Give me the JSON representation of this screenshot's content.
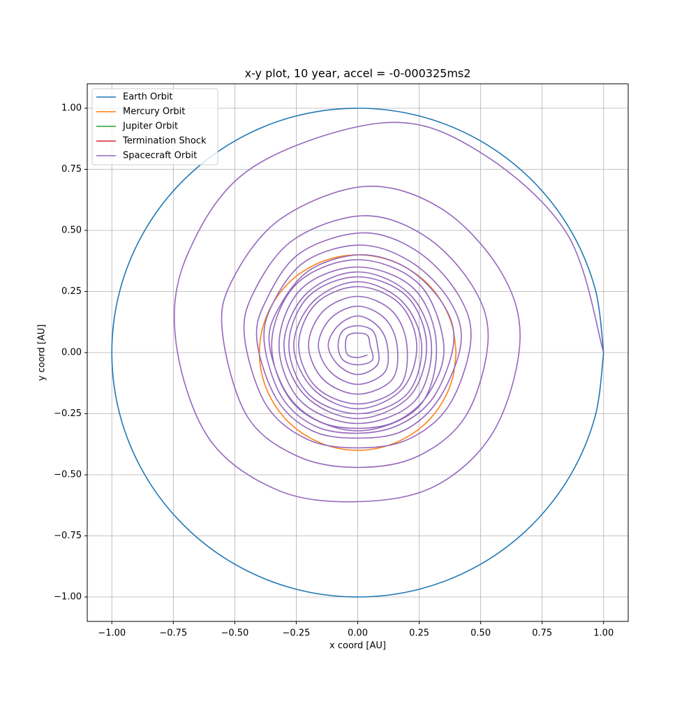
{
  "chart_data": {
    "type": "line",
    "title": "x-y plot, 10 year, accel = -0-000325ms2",
    "x_label": "x coord [AU]",
    "y_label": "y coord [AU]",
    "xlim": [
      -1.1,
      1.1
    ],
    "ylim": [
      -1.1,
      1.1
    ],
    "grid": true,
    "legend": "upper left",
    "xticks": [
      {
        "value": -1,
        "label": "−1.00"
      },
      {
        "value": -0.75,
        "label": "−0.75"
      },
      {
        "value": -0.5,
        "label": "−0.50"
      },
      {
        "value": -0.25,
        "label": "−0.25"
      },
      {
        "value": 0,
        "label": "0.00"
      },
      {
        "value": 0.25,
        "label": "0.25"
      },
      {
        "value": 0.5,
        "label": "0.50"
      },
      {
        "value": 0.75,
        "label": "0.75"
      },
      {
        "value": 1,
        "label": "1.00"
      }
    ],
    "yticks": [
      {
        "value": -1,
        "label": "−1.00"
      },
      {
        "value": -0.75,
        "label": "−0.75"
      },
      {
        "value": -0.5,
        "label": "−0.50"
      },
      {
        "value": -0.25,
        "label": "−0.25"
      },
      {
        "value": 0,
        "label": "0.00"
      },
      {
        "value": 0.25,
        "label": "0.25"
      },
      {
        "value": 0.5,
        "label": "0.50"
      },
      {
        "value": 0.75,
        "label": "0.75"
      },
      {
        "value": 1,
        "label": "1.00"
      }
    ],
    "series": [
      {
        "name": "Earth Orbit",
        "color": "#1f77b4",
        "x": [
          1,
          0.966,
          0.866,
          0.707,
          0.5,
          0.259,
          0,
          -0.259,
          -0.5,
          -0.707,
          -0.866,
          -0.966,
          -1,
          -0.966,
          -0.866,
          -0.707,
          -0.5,
          -0.259,
          0,
          0.259,
          0.5,
          0.707,
          0.866,
          0.966,
          1
        ],
        "y": [
          0,
          0.259,
          0.5,
          0.707,
          0.866,
          0.966,
          1,
          0.966,
          0.866,
          0.707,
          0.5,
          0.259,
          0,
          -0.259,
          -0.5,
          -0.707,
          -0.866,
          -0.966,
          -1,
          -0.966,
          -0.866,
          -0.707,
          -0.5,
          -0.259,
          0
        ]
      },
      {
        "name": "Mercury Orbit",
        "color": "#ff7f0e",
        "x": [
          0.4,
          0.386,
          0.346,
          0.283,
          0.2,
          0.104,
          0,
          -0.104,
          -0.2,
          -0.283,
          -0.346,
          -0.386,
          -0.4,
          -0.386,
          -0.346,
          -0.283,
          -0.2,
          -0.104,
          0,
          0.104,
          0.2,
          0.283,
          0.346,
          0.386,
          0.4
        ],
        "y": [
          0,
          0.104,
          0.2,
          0.283,
          0.346,
          0.386,
          0.4,
          0.386,
          0.346,
          0.283,
          0.2,
          0.104,
          0,
          -0.104,
          -0.2,
          -0.283,
          -0.346,
          -0.386,
          -0.4,
          -0.386,
          -0.346,
          -0.283,
          -0.2,
          -0.104,
          0
        ]
      },
      {
        "name": "Jupiter Orbit",
        "color": "#2ca02c",
        "x": [],
        "y": []
      },
      {
        "name": "Termination Shock",
        "color": "#d62728",
        "x": [],
        "y": []
      },
      {
        "name": "Spacecraft Orbit",
        "color": "#9467bd",
        "x": [
          1.0,
          0.849,
          0.48,
          0.1,
          -0.435,
          -0.693,
          -0.74,
          -0.606,
          -0.325,
          0,
          0.315,
          0.554,
          0.66,
          0.58,
          0.34,
          0.03,
          -0.315,
          -0.511,
          -0.55,
          -0.45,
          -0.245,
          0,
          0.245,
          0.442,
          0.53,
          0.468,
          0.275,
          0.02,
          -0.265,
          -0.424,
          -0.46,
          -0.372,
          -0.205,
          0,
          0.205,
          0.372,
          0.46,
          0.407,
          0.24,
          0.02,
          -0.235,
          -0.372,
          -0.41,
          -0.33,
          -0.185,
          0,
          0.185,
          0.33,
          0.42,
          0.372,
          0.215,
          0.01,
          -0.215,
          -0.346,
          -0.38,
          -0.31,
          -0.175,
          0,
          0.17,
          0.31,
          0.39,
          0.346,
          0.2,
          0.01,
          -0.195,
          -0.32,
          -0.36,
          -0.29,
          -0.16,
          0,
          0.16,
          0.29,
          0.35,
          0.25,
          0,
          -0.25,
          -0.35,
          -0.25,
          0,
          0.25,
          0.32,
          0.23,
          0,
          -0.23,
          -0.32,
          -0.23,
          0,
          0.23,
          0.3,
          0.21,
          0,
          -0.21,
          -0.3,
          -0.21,
          0,
          0.21,
          0.28,
          0.2,
          0,
          -0.2,
          -0.28,
          -0.2,
          0,
          0.2,
          0.26,
          0.18,
          0,
          -0.18,
          -0.26,
          -0.18,
          0,
          0.18,
          0.24,
          0.17,
          0,
          -0.17,
          -0.24,
          -0.17,
          0,
          0.17,
          0.2,
          0.14,
          0,
          -0.14,
          -0.2,
          -0.14,
          0,
          0.14,
          0.16,
          0.11,
          0,
          -0.11,
          -0.16,
          -0.11,
          0,
          0.11,
          0.12,
          0.08,
          0,
          -0.08,
          -0.12,
          -0.08,
          0,
          0.08,
          0.08,
          0.06,
          0,
          -0.06,
          -0.08,
          -0.06,
          0,
          0.06,
          0.05,
          0.04,
          0,
          -0.04,
          -0.05,
          -0.04,
          0,
          0.04
        ],
        "y": [
          0,
          0.49,
          0.831,
          0.94,
          0.753,
          0.4,
          0.05,
          -0.35,
          -0.563,
          -0.61,
          -0.546,
          -0.32,
          0.05,
          0.335,
          0.589,
          0.68,
          0.546,
          0.295,
          0.08,
          -0.26,
          -0.424,
          -0.47,
          -0.424,
          -0.255,
          0.05,
          0.27,
          0.476,
          0.56,
          0.459,
          0.245,
          0.06,
          -0.215,
          -0.355,
          -0.39,
          -0.355,
          -0.215,
          0.05,
          0.24,
          0.416,
          0.49,
          0.407,
          0.215,
          0.05,
          -0.19,
          -0.32,
          -0.35,
          -0.32,
          -0.19,
          0.04,
          0.215,
          0.372,
          0.44,
          0.372,
          0.2,
          0.04,
          -0.18,
          -0.3,
          -0.33,
          -0.295,
          -0.18,
          0.04,
          0.2,
          0.346,
          0.4,
          0.338,
          0.185,
          0.04,
          -0.165,
          -0.28,
          -0.31,
          -0.28,
          -0.165,
          0.03,
          0.28,
          0.38,
          0.28,
          0.03,
          -0.22,
          -0.32,
          -0.22,
          0.03,
          0.26,
          0.35,
          0.26,
          0.03,
          -0.2,
          -0.29,
          -0.2,
          0.03,
          0.24,
          0.33,
          0.24,
          0.03,
          -0.18,
          -0.27,
          -0.18,
          0.03,
          0.23,
          0.31,
          0.23,
          0.03,
          -0.17,
          -0.25,
          -0.17,
          0.03,
          0.21,
          0.29,
          0.21,
          0.03,
          -0.15,
          -0.23,
          -0.15,
          0.03,
          0.2,
          0.27,
          0.2,
          0.03,
          -0.14,
          -0.21,
          -0.14,
          0.03,
          0.17,
          0.23,
          0.17,
          0.03,
          -0.11,
          -0.17,
          -0.11,
          0.03,
          0.14,
          0.19,
          0.14,
          0.03,
          -0.08,
          -0.13,
          -0.08,
          0.03,
          0.11,
          0.15,
          0.11,
          0.03,
          -0.05,
          -0.09,
          -0.05,
          0.03,
          0.09,
          0.11,
          0.09,
          0.03,
          -0.03,
          -0.05,
          -0.03,
          0.03,
          0.07,
          0.08,
          0.07,
          0.03,
          -0.01,
          -0.02,
          -0.01
        ]
      }
    ]
  }
}
